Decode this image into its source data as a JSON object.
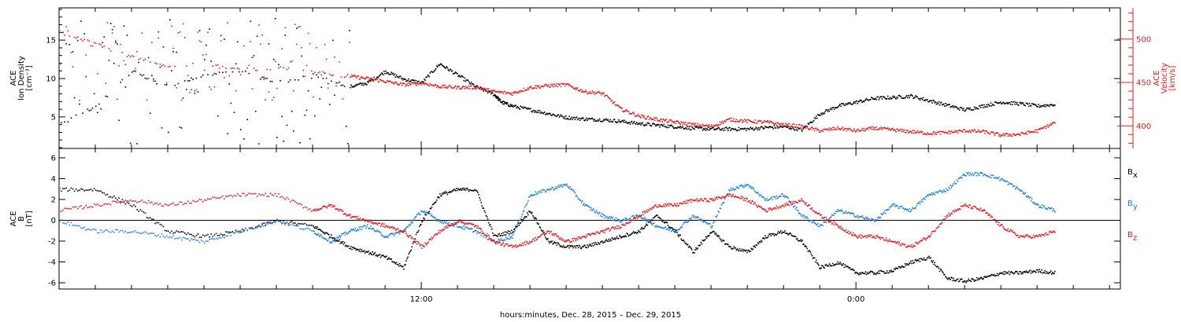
{
  "xlabel": "hours:minutes, Dec. 28, 2015 – Dec. 29, 2015",
  "colors": {
    "black": "#000000",
    "red": "#e41a1c",
    "blue": "#1f7fd8"
  },
  "chart_data": [
    {
      "type": "scatter",
      "panel": "top",
      "title": "",
      "x_unit": "hours since Dec. 28, 2015 00:00",
      "xlim": [
        2.0,
        31.3
      ],
      "x_tick_labels": [
        "12:00",
        "0:00"
      ],
      "x_tick_values": [
        12.0,
        24.0
      ],
      "grid": false,
      "left_axis": {
        "label_lines": [
          "ACE",
          "Ion Density",
          "[cm⁻³]"
        ],
        "ylim": [
          0.9,
          19.2
        ],
        "ticks": [
          5,
          10,
          15
        ],
        "tick_labels": [
          "5",
          "10",
          "15"
        ]
      },
      "right_axis": {
        "label_lines": [
          "ACE",
          "Velocity",
          "[km/s]"
        ],
        "color": "#e41a1c",
        "ylim": [
          374,
          536
        ],
        "ticks": [
          400,
          450,
          500
        ],
        "tick_labels": [
          "400",
          "450",
          "500"
        ]
      },
      "series": [
        {
          "axis": "left",
          "color": "#000000",
          "points": [
            [
              2.0,
              4.0
            ],
            [
              3.0,
              6.5
            ],
            [
              4.0,
              11.0
            ],
            [
              5.0,
              9.0
            ],
            [
              6.0,
              10.5
            ],
            [
              7.0,
              11.0
            ],
            [
              8.0,
              9.5
            ],
            [
              9.0,
              10.5
            ],
            [
              10.0,
              9.0
            ],
            [
              10.5,
              9.5
            ],
            [
              11.0,
              11.0
            ],
            [
              11.5,
              10.0
            ],
            [
              12.0,
              9.5
            ],
            [
              12.5,
              12.0
            ],
            [
              13.0,
              10.5
            ],
            [
              13.5,
              9.0
            ],
            [
              14.0,
              8.0
            ],
            [
              14.2,
              7.0
            ],
            [
              14.5,
              6.5
            ],
            [
              15.0,
              6.0
            ],
            [
              15.5,
              5.5
            ],
            [
              16.0,
              5.0
            ],
            [
              16.5,
              4.8
            ],
            [
              17.0,
              4.7
            ],
            [
              17.5,
              4.5
            ],
            [
              18.0,
              4.2
            ],
            [
              18.5,
              4.0
            ],
            [
              19.0,
              3.8
            ],
            [
              19.5,
              3.6
            ],
            [
              20.0,
              3.5
            ],
            [
              20.5,
              3.5
            ],
            [
              21.0,
              3.5
            ],
            [
              21.5,
              3.7
            ],
            [
              22.0,
              3.8
            ],
            [
              22.5,
              3.4
            ],
            [
              23.0,
              5.5
            ],
            [
              23.5,
              6.5
            ],
            [
              24.0,
              7.0
            ],
            [
              24.5,
              7.5
            ],
            [
              25.0,
              7.6
            ],
            [
              25.5,
              7.8
            ],
            [
              26.0,
              7.2
            ],
            [
              26.5,
              6.6
            ],
            [
              27.0,
              6.0
            ],
            [
              27.5,
              6.5
            ],
            [
              28.0,
              7.0
            ],
            [
              28.5,
              6.8
            ],
            [
              29.0,
              6.5
            ],
            [
              29.5,
              6.7
            ]
          ],
          "scatter": {
            "x0": 2.0,
            "x1": 10.0,
            "ymin": 1.5,
            "ymax": 18.0
          }
        },
        {
          "axis": "right",
          "color": "#e41a1c",
          "points": [
            [
              2.0,
              510
            ],
            [
              3.0,
              495
            ],
            [
              4.0,
              480
            ],
            [
              5.0,
              470
            ],
            [
              6.0,
              472
            ],
            [
              7.0,
              465
            ],
            [
              8.0,
              468
            ],
            [
              9.0,
              462
            ],
            [
              10.0,
              458
            ],
            [
              10.5,
              455
            ],
            [
              11.0,
              452
            ],
            [
              11.5,
              448
            ],
            [
              12.0,
              450
            ],
            [
              12.5,
              446
            ],
            [
              13.0,
              445
            ],
            [
              13.5,
              445
            ],
            [
              14.0,
              440
            ],
            [
              14.5,
              438
            ],
            [
              15.0,
              445
            ],
            [
              15.5,
              447
            ],
            [
              16.0,
              448
            ],
            [
              16.5,
              440
            ],
            [
              17.0,
              438
            ],
            [
              17.5,
              420
            ],
            [
              18.0,
              412
            ],
            [
              18.5,
              408
            ],
            [
              19.0,
              405
            ],
            [
              19.5,
              402
            ],
            [
              20.0,
              400
            ],
            [
              20.5,
              408
            ],
            [
              21.0,
              406
            ],
            [
              21.5,
              405
            ],
            [
              22.0,
              402
            ],
            [
              22.5,
              400
            ],
            [
              23.0,
              395
            ],
            [
              23.5,
              398
            ],
            [
              24.0,
              395
            ],
            [
              24.5,
              398
            ],
            [
              25.0,
              396
            ],
            [
              25.5,
              394
            ],
            [
              26.0,
              392
            ],
            [
              26.5,
              393
            ],
            [
              27.0,
              395
            ],
            [
              27.5,
              394
            ],
            [
              28.0,
              390
            ],
            [
              28.5,
              391
            ],
            [
              29.0,
              395
            ],
            [
              29.5,
              405
            ]
          ],
          "scatter": {
            "x0": 2.0,
            "x1": 10.0,
            "ymin": 430,
            "ymax": 520
          }
        }
      ]
    },
    {
      "type": "scatter",
      "panel": "bottom",
      "title": "",
      "x_unit": "hours since Dec. 28, 2015 00:00",
      "xlim": [
        2.0,
        31.3
      ],
      "x_tick_labels": [
        "12:00",
        "0:00"
      ],
      "x_tick_values": [
        12.0,
        24.0
      ],
      "grid": false,
      "zero_line": true,
      "left_axis": {
        "label_lines": [
          "ACE",
          "B",
          "[nT]"
        ],
        "ylim": [
          -6.6,
          6.9
        ],
        "ticks": [
          -6,
          -4,
          -2,
          0,
          2,
          4,
          6
        ],
        "tick_labels": [
          "-6",
          "-4",
          "-2",
          "0",
          "2",
          "4",
          "6"
        ]
      },
      "legend_position": "right",
      "series": [
        {
          "name": "Bx",
          "label": "B",
          "subscript": "x",
          "color": "#000000",
          "points": [
            [
              2.0,
              3.0
            ],
            [
              3.0,
              3.0
            ],
            [
              4.0,
              1.5
            ],
            [
              5.0,
              -1.0
            ],
            [
              6.0,
              -1.5
            ],
            [
              7.0,
              -1.0
            ],
            [
              8.0,
              0.0
            ],
            [
              9.0,
              -0.5
            ],
            [
              9.5,
              -1.5
            ],
            [
              10.0,
              -2.5
            ],
            [
              10.5,
              -3.0
            ],
            [
              11.0,
              -3.5
            ],
            [
              11.5,
              -4.5
            ],
            [
              12.0,
              0.0
            ],
            [
              12.5,
              2.5
            ],
            [
              13.0,
              3.0
            ],
            [
              13.5,
              3.0
            ],
            [
              14.0,
              -1.5
            ],
            [
              14.5,
              -1.0
            ],
            [
              15.0,
              1.0
            ],
            [
              15.5,
              -2.0
            ],
            [
              16.0,
              -2.5
            ],
            [
              16.5,
              -2.5
            ],
            [
              17.0,
              -2.0
            ],
            [
              17.5,
              -1.5
            ],
            [
              18.0,
              -1.0
            ],
            [
              18.5,
              0.5
            ],
            [
              19.0,
              -1.0
            ],
            [
              19.5,
              -3.0
            ],
            [
              20.0,
              -1.0
            ],
            [
              20.5,
              -2.5
            ],
            [
              21.0,
              -3.0
            ],
            [
              21.5,
              -1.5
            ],
            [
              22.0,
              -1.0
            ],
            [
              22.5,
              -2.0
            ],
            [
              23.0,
              -4.5
            ],
            [
              23.5,
              -4.0
            ],
            [
              24.0,
              -5.0
            ],
            [
              24.5,
              -5.0
            ],
            [
              25.0,
              -4.8
            ],
            [
              25.5,
              -4.0
            ],
            [
              26.0,
              -3.5
            ],
            [
              26.5,
              -5.5
            ],
            [
              27.0,
              -5.8
            ],
            [
              27.5,
              -5.5
            ],
            [
              28.0,
              -5.0
            ],
            [
              28.5,
              -5.0
            ],
            [
              29.0,
              -4.8
            ],
            [
              29.5,
              -5.0
            ]
          ]
        },
        {
          "name": "By",
          "label": "B",
          "subscript": "y",
          "color": "#1f7fd8",
          "points": [
            [
              2.0,
              0.0
            ],
            [
              3.0,
              -1.0
            ],
            [
              4.0,
              -1.0
            ],
            [
              5.0,
              -1.5
            ],
            [
              6.0,
              -2.0
            ],
            [
              7.0,
              -1.0
            ],
            [
              8.0,
              0.0
            ],
            [
              9.0,
              -1.0
            ],
            [
              9.5,
              -2.0
            ],
            [
              10.0,
              -1.0
            ],
            [
              10.5,
              -0.5
            ],
            [
              11.0,
              -1.5
            ],
            [
              11.5,
              -1.0
            ],
            [
              12.0,
              1.0
            ],
            [
              12.5,
              0.0
            ],
            [
              13.0,
              -0.5
            ],
            [
              13.5,
              -1.0
            ],
            [
              14.0,
              -2.0
            ],
            [
              14.5,
              -1.5
            ],
            [
              15.0,
              2.5
            ],
            [
              15.5,
              3.0
            ],
            [
              16.0,
              3.5
            ],
            [
              16.5,
              1.5
            ],
            [
              17.0,
              0.5
            ],
            [
              17.5,
              0.0
            ],
            [
              18.0,
              0.5
            ],
            [
              18.5,
              -0.5
            ],
            [
              19.0,
              -1.0
            ],
            [
              19.5,
              0.5
            ],
            [
              20.0,
              -0.5
            ],
            [
              20.5,
              3.0
            ],
            [
              21.0,
              3.5
            ],
            [
              21.5,
              2.0
            ],
            [
              22.0,
              2.5
            ],
            [
              22.5,
              0.5
            ],
            [
              23.0,
              -0.5
            ],
            [
              23.5,
              1.0
            ],
            [
              24.0,
              0.5
            ],
            [
              24.5,
              0.0
            ],
            [
              25.0,
              1.5
            ],
            [
              25.5,
              1.0
            ],
            [
              26.0,
              2.5
            ],
            [
              26.5,
              3.0
            ],
            [
              27.0,
              4.5
            ],
            [
              27.5,
              4.5
            ],
            [
              28.0,
              4.0
            ],
            [
              28.5,
              3.0
            ],
            [
              29.0,
              1.5
            ],
            [
              29.5,
              1.0
            ]
          ]
        },
        {
          "name": "Bz",
          "label": "B",
          "subscript": "z",
          "color": "#e41a1c",
          "points": [
            [
              2.0,
              1.0
            ],
            [
              3.0,
              1.5
            ],
            [
              4.0,
              2.0
            ],
            [
              5.0,
              1.5
            ],
            [
              6.0,
              2.0
            ],
            [
              7.0,
              2.5
            ],
            [
              8.0,
              2.5
            ],
            [
              9.0,
              1.0
            ],
            [
              9.5,
              1.5
            ],
            [
              10.0,
              0.5
            ],
            [
              10.5,
              0.0
            ],
            [
              11.0,
              -0.5
            ],
            [
              11.5,
              -1.0
            ],
            [
              12.0,
              -2.5
            ],
            [
              12.5,
              -1.0
            ],
            [
              13.0,
              0.0
            ],
            [
              13.5,
              -0.5
            ],
            [
              14.0,
              -2.0
            ],
            [
              14.5,
              -2.5
            ],
            [
              15.0,
              -2.0
            ],
            [
              15.5,
              -1.0
            ],
            [
              16.0,
              -2.0
            ],
            [
              16.5,
              -1.5
            ],
            [
              17.0,
              -1.0
            ],
            [
              17.5,
              -0.5
            ],
            [
              18.0,
              0.5
            ],
            [
              18.5,
              1.5
            ],
            [
              19.0,
              1.5
            ],
            [
              19.5,
              2.0
            ],
            [
              20.0,
              2.0
            ],
            [
              20.5,
              2.5
            ],
            [
              21.0,
              2.0
            ],
            [
              21.5,
              1.0
            ],
            [
              22.0,
              1.5
            ],
            [
              22.5,
              2.0
            ],
            [
              23.0,
              0.5
            ],
            [
              23.5,
              -0.5
            ],
            [
              24.0,
              -1.5
            ],
            [
              24.5,
              -1.5
            ],
            [
              25.0,
              -2.0
            ],
            [
              25.5,
              -2.5
            ],
            [
              26.0,
              -1.5
            ],
            [
              26.5,
              0.5
            ],
            [
              27.0,
              1.5
            ],
            [
              27.5,
              1.0
            ],
            [
              28.0,
              -0.5
            ],
            [
              28.5,
              -1.5
            ],
            [
              29.0,
              -1.5
            ],
            [
              29.5,
              -1.0
            ]
          ]
        }
      ]
    }
  ]
}
